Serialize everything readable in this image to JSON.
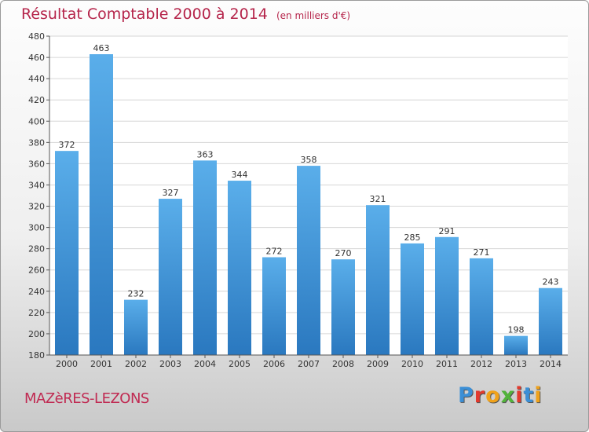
{
  "header": {
    "title": "Résultat Comptable 2000 à 2014",
    "unit": "(en milliers d'€)"
  },
  "footer": {
    "city": "MAZèRES-LEZONS",
    "logo": [
      {
        "ch": "P",
        "color": "#3b8fd6"
      },
      {
        "ch": "r",
        "color": "#e23a2e"
      },
      {
        "ch": "o",
        "color": "#f0a21a"
      },
      {
        "ch": "x",
        "color": "#52b33a"
      },
      {
        "ch": "i",
        "color": "#e23a2e"
      },
      {
        "ch": "t",
        "color": "#3b8fd6"
      },
      {
        "ch": "i",
        "color": "#f0a21a"
      }
    ]
  },
  "colors": {
    "title": "#b5244a",
    "bar_top": "#5aaeea",
    "bar_bottom": "#2a78bf",
    "grid": "#d6d6d6",
    "axis": "#555555"
  },
  "chart_data": {
    "type": "bar",
    "title": "Résultat Comptable 2000 à 2014",
    "ylabel": "",
    "xlabel": "",
    "ylim": [
      180,
      480
    ],
    "yticks": [
      180,
      200,
      220,
      240,
      260,
      280,
      300,
      320,
      340,
      360,
      380,
      400,
      420,
      440,
      460,
      480
    ],
    "grid": true,
    "categories": [
      "2000",
      "2001",
      "2002",
      "2003",
      "2004",
      "2005",
      "2006",
      "2007",
      "2008",
      "2009",
      "2010",
      "2011",
      "2012",
      "2013",
      "2014"
    ],
    "values": [
      372,
      463,
      232,
      327,
      363,
      344,
      272,
      358,
      270,
      321,
      285,
      291,
      271,
      198,
      243
    ]
  }
}
